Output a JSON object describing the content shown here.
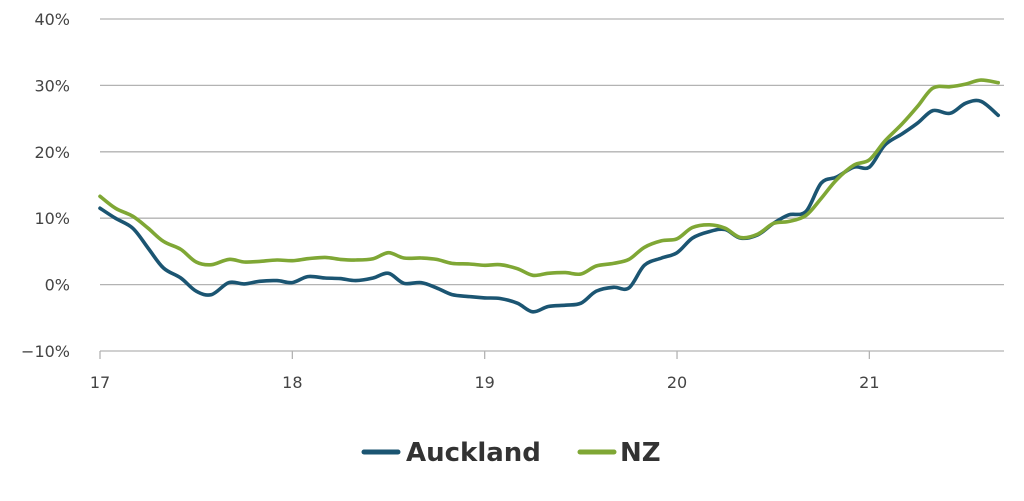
{
  "chart_data": {
    "type": "line",
    "xlim": [
      17,
      21.7
    ],
    "ylim": [
      -10,
      40
    ],
    "xticks": [
      {
        "value": 17,
        "label": "17"
      },
      {
        "value": 18,
        "label": "18"
      },
      {
        "value": 19,
        "label": "19"
      },
      {
        "value": 20,
        "label": "20"
      },
      {
        "value": 21,
        "label": "21"
      }
    ],
    "yticks": [
      {
        "value": 40,
        "label": "40%"
      },
      {
        "value": 30,
        "label": "30%"
      },
      {
        "value": 20,
        "label": "20%"
      },
      {
        "value": 10,
        "label": "10%"
      },
      {
        "value": 0,
        "label": "0%"
      },
      {
        "value": -10,
        "label": "−10%"
      }
    ],
    "grid": true,
    "legend_position": "bottom-center",
    "series": [
      {
        "name": "Auckland",
        "color": "#1b5572",
        "points": [
          [
            17.0,
            11.5
          ],
          [
            17.08,
            10.0
          ],
          [
            17.17,
            8.5
          ],
          [
            17.25,
            5.5
          ],
          [
            17.33,
            2.5
          ],
          [
            17.42,
            1.0
          ],
          [
            17.5,
            -1.0
          ],
          [
            17.58,
            -1.5
          ],
          [
            17.67,
            0.3
          ],
          [
            17.75,
            0.1
          ],
          [
            17.83,
            0.5
          ],
          [
            17.92,
            0.6
          ],
          [
            18.0,
            0.3
          ],
          [
            18.08,
            1.2
          ],
          [
            18.17,
            1.0
          ],
          [
            18.25,
            0.9
          ],
          [
            18.33,
            0.6
          ],
          [
            18.42,
            1.0
          ],
          [
            18.5,
            1.7
          ],
          [
            18.58,
            0.2
          ],
          [
            18.67,
            0.3
          ],
          [
            18.75,
            -0.5
          ],
          [
            18.83,
            -1.5
          ],
          [
            18.92,
            -1.8
          ],
          [
            19.0,
            -2.0
          ],
          [
            19.08,
            -2.1
          ],
          [
            19.17,
            -2.8
          ],
          [
            19.25,
            -4.1
          ],
          [
            19.33,
            -3.3
          ],
          [
            19.42,
            -3.1
          ],
          [
            19.5,
            -2.8
          ],
          [
            19.58,
            -1.0
          ],
          [
            19.67,
            -0.4
          ],
          [
            19.75,
            -0.5
          ],
          [
            19.83,
            2.9
          ],
          [
            19.92,
            4.0
          ],
          [
            20.0,
            4.8
          ],
          [
            20.08,
            7.0
          ],
          [
            20.17,
            8.0
          ],
          [
            20.25,
            8.3
          ],
          [
            20.33,
            7.0
          ],
          [
            20.42,
            7.5
          ],
          [
            20.5,
            9.2
          ],
          [
            20.58,
            10.5
          ],
          [
            20.67,
            11.0
          ],
          [
            20.75,
            15.3
          ],
          [
            20.83,
            16.2
          ],
          [
            20.92,
            17.7
          ],
          [
            21.0,
            17.7
          ],
          [
            21.08,
            21.0
          ],
          [
            21.17,
            22.7
          ],
          [
            21.25,
            24.3
          ],
          [
            21.33,
            26.2
          ],
          [
            21.42,
            25.8
          ],
          [
            21.5,
            27.3
          ],
          [
            21.58,
            27.6
          ],
          [
            21.67,
            25.5
          ]
        ]
      },
      {
        "name": "NZ",
        "color": "#7fa735",
        "points": [
          [
            17.0,
            13.3
          ],
          [
            17.08,
            11.5
          ],
          [
            17.17,
            10.3
          ],
          [
            17.25,
            8.5
          ],
          [
            17.33,
            6.5
          ],
          [
            17.42,
            5.3
          ],
          [
            17.5,
            3.4
          ],
          [
            17.58,
            3.0
          ],
          [
            17.67,
            3.8
          ],
          [
            17.75,
            3.4
          ],
          [
            17.83,
            3.5
          ],
          [
            17.92,
            3.7
          ],
          [
            18.0,
            3.6
          ],
          [
            18.08,
            3.9
          ],
          [
            18.17,
            4.1
          ],
          [
            18.25,
            3.8
          ],
          [
            18.33,
            3.7
          ],
          [
            18.42,
            3.9
          ],
          [
            18.5,
            4.8
          ],
          [
            18.58,
            4.0
          ],
          [
            18.67,
            4.0
          ],
          [
            18.75,
            3.8
          ],
          [
            18.83,
            3.2
          ],
          [
            18.92,
            3.1
          ],
          [
            19.0,
            2.9
          ],
          [
            19.08,
            3.0
          ],
          [
            19.17,
            2.4
          ],
          [
            19.25,
            1.4
          ],
          [
            19.33,
            1.7
          ],
          [
            19.42,
            1.8
          ],
          [
            19.5,
            1.6
          ],
          [
            19.58,
            2.8
          ],
          [
            19.67,
            3.2
          ],
          [
            19.75,
            3.8
          ],
          [
            19.83,
            5.6
          ],
          [
            19.92,
            6.6
          ],
          [
            20.0,
            6.9
          ],
          [
            20.08,
            8.6
          ],
          [
            20.17,
            9.0
          ],
          [
            20.25,
            8.5
          ],
          [
            20.33,
            7.1
          ],
          [
            20.42,
            7.6
          ],
          [
            20.5,
            9.2
          ],
          [
            20.58,
            9.5
          ],
          [
            20.67,
            10.4
          ],
          [
            20.75,
            13.0
          ],
          [
            20.83,
            15.8
          ],
          [
            20.92,
            18.0
          ],
          [
            21.0,
            18.8
          ],
          [
            21.08,
            21.6
          ],
          [
            21.17,
            24.2
          ],
          [
            21.25,
            26.8
          ],
          [
            21.33,
            29.6
          ],
          [
            21.42,
            29.8
          ],
          [
            21.5,
            30.2
          ],
          [
            21.58,
            30.8
          ],
          [
            21.67,
            30.4
          ]
        ]
      }
    ]
  }
}
